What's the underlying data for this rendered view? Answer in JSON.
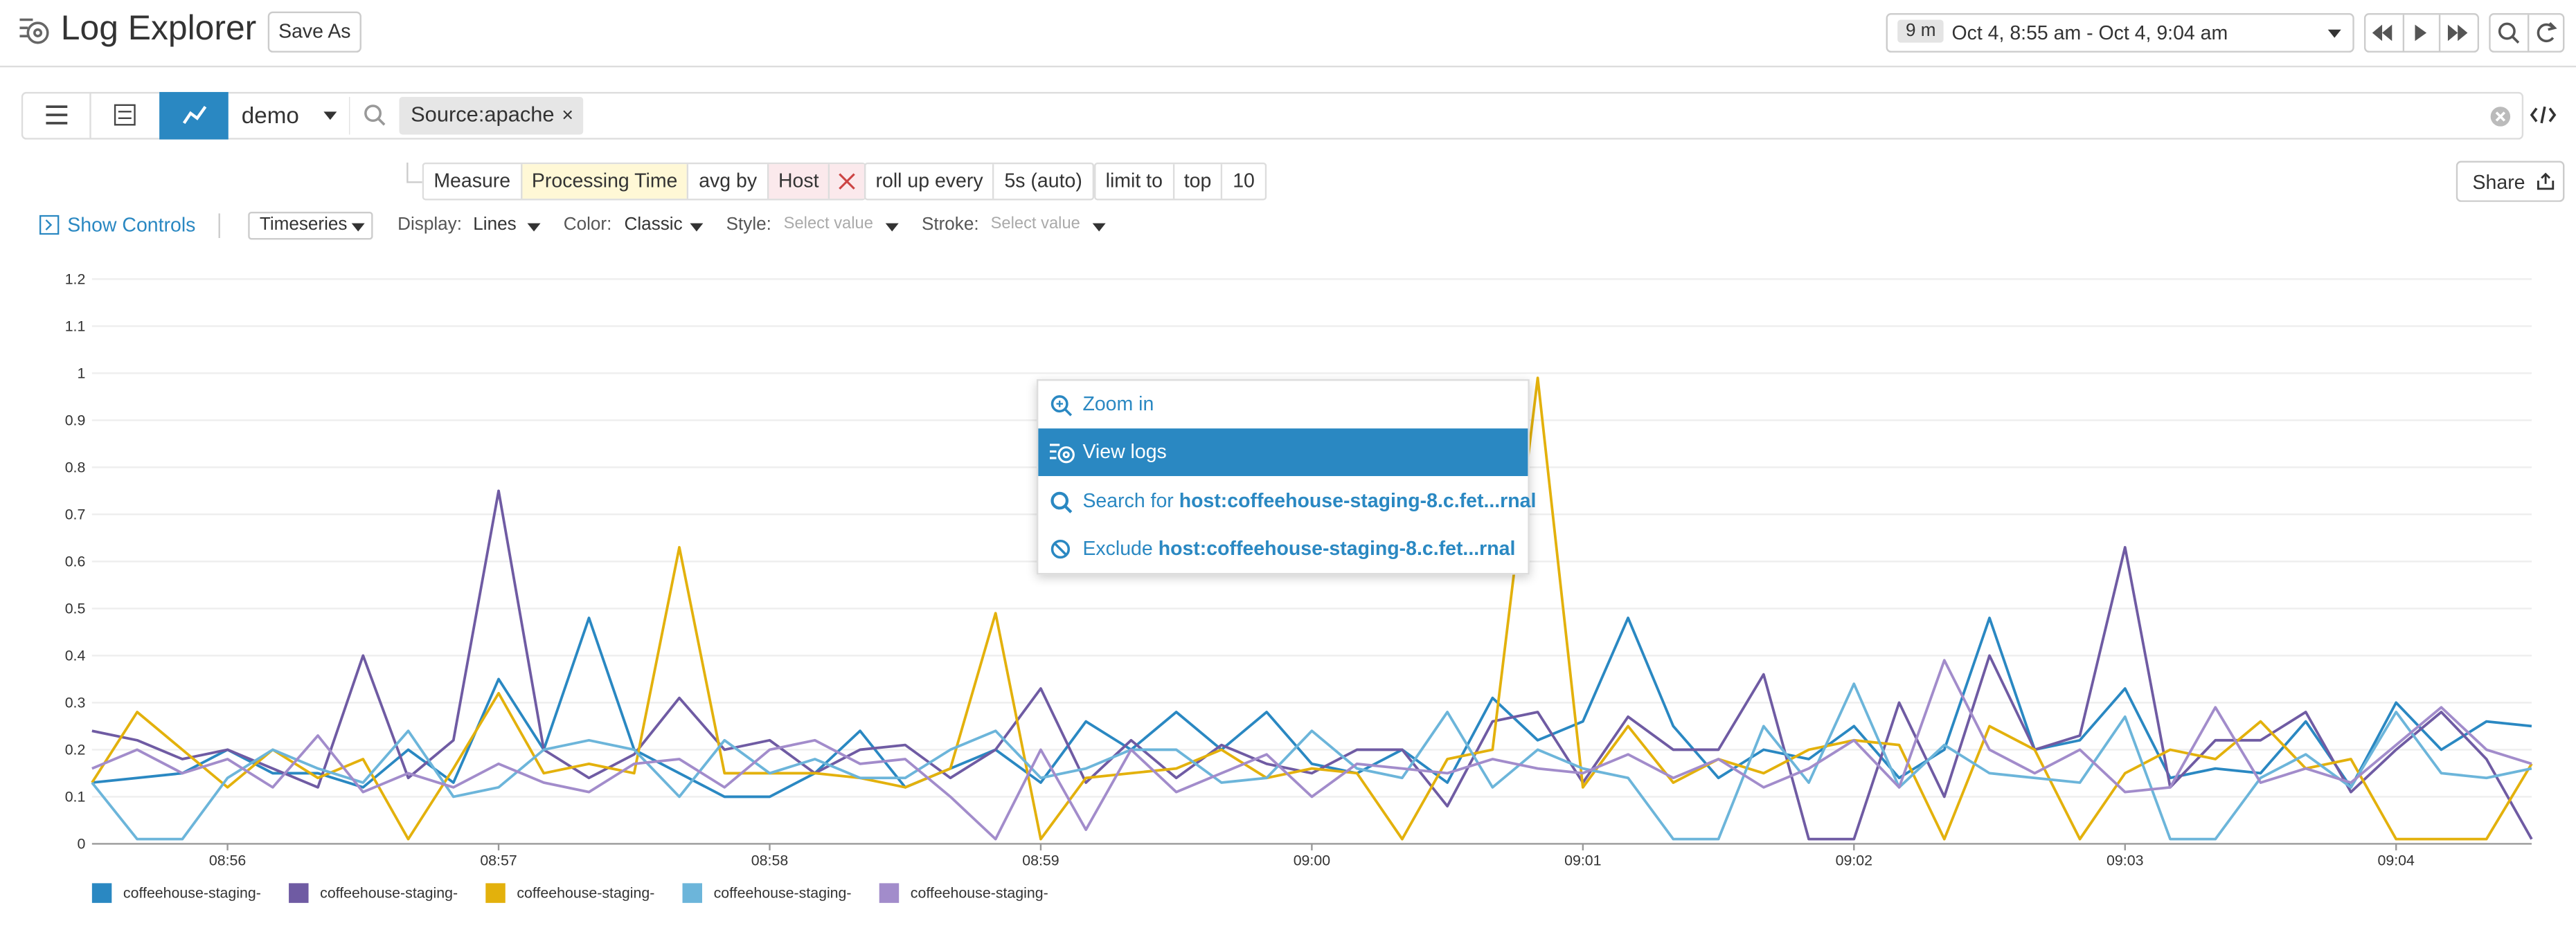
{
  "header": {
    "title": "Log Explorer",
    "save_as": "Save As",
    "time_range_badge": "9 m",
    "time_range": "Oct 4, 8:55 am - Oct 4, 9:04 am"
  },
  "search": {
    "index": "demo",
    "query_tag": "Source:apache",
    "tag_remove": "×"
  },
  "query_builder": {
    "measure_label": "Measure",
    "measure": "Processing Time",
    "agg": "avg by",
    "group": "Host",
    "rollup_label": "roll up every",
    "rollup": "5s (auto)",
    "limit_label": "limit to",
    "limit_dir": "top",
    "limit": "10",
    "share": "Share"
  },
  "controls": {
    "show_controls": "Show Controls",
    "viz": "Timeseries",
    "display_label": "Display:",
    "display": "Lines",
    "color_label": "Color:",
    "color": "Classic",
    "style_label": "Style:",
    "style": "Select value",
    "stroke_label": "Stroke:",
    "stroke": "Select value"
  },
  "context_menu": {
    "zoom_in": "Zoom in",
    "view_logs": "View logs",
    "search_prefix": "Search for",
    "search_value": "host:coffeehouse-staging-8.c.fet...rnal",
    "exclude_prefix": "Exclude",
    "exclude_value": "host:coffeehouse-staging-8.c.fet...rnal"
  },
  "chart_data": {
    "type": "line",
    "categories": [
      null,
      null,
      null,
      "08:56",
      null,
      null,
      null,
      null,
      null,
      "08:57",
      null,
      null,
      null,
      null,
      null,
      "08:58",
      null,
      null,
      null,
      null,
      null,
      "08:59",
      null,
      null,
      null,
      null,
      null,
      "09:00",
      null,
      null,
      null,
      null,
      null,
      "09:01",
      null,
      null,
      null,
      null,
      null,
      "09:02",
      null,
      null,
      null,
      null,
      null,
      "09:03",
      null,
      null,
      null,
      null,
      null,
      "09:04",
      null,
      null,
      null
    ],
    "ylim": [
      0,
      1.2
    ],
    "yticks": [
      0,
      0.1,
      0.2,
      0.3,
      0.4,
      0.5,
      0.6,
      0.7,
      0.8,
      0.9,
      1,
      1.1,
      1.2
    ],
    "grid": true,
    "series": [
      {
        "name": "coffeehouse-staging-",
        "color": "#2a88c2",
        "values": [
          0.13,
          0.14,
          0.15,
          0.2,
          0.15,
          0.15,
          0.12,
          0.2,
          0.13,
          0.35,
          0.2,
          0.48,
          0.2,
          0.15,
          0.1,
          0.1,
          0.15,
          0.24,
          0.12,
          0.16,
          0.2,
          0.13,
          0.26,
          0.2,
          0.28,
          0.2,
          0.28,
          0.17,
          0.15,
          0.2,
          0.13,
          0.31,
          0.22,
          0.26,
          0.48,
          0.25,
          0.14,
          0.2,
          0.18,
          0.25,
          0.14,
          0.2,
          0.48,
          0.2,
          0.22,
          0.33,
          0.14,
          0.16,
          0.15,
          0.26,
          0.12,
          0.3,
          0.2,
          0.26,
          0.25
        ]
      },
      {
        "name": "coffeehouse-staging-",
        "color": "#6f5ba3",
        "values": [
          0.24,
          0.22,
          0.18,
          0.2,
          0.16,
          0.12,
          0.4,
          0.14,
          0.22,
          0.75,
          0.2,
          0.14,
          0.19,
          0.31,
          0.2,
          0.22,
          0.15,
          0.2,
          0.21,
          0.14,
          0.2,
          0.33,
          0.13,
          0.22,
          0.14,
          0.21,
          0.17,
          0.15,
          0.2,
          0.2,
          0.08,
          0.26,
          0.28,
          0.13,
          0.27,
          0.2,
          0.2,
          0.36,
          0.01,
          0.01,
          0.3,
          0.1,
          0.4,
          0.2,
          0.23,
          0.63,
          0.12,
          0.22,
          0.22,
          0.28,
          0.11,
          0.2,
          0.28,
          0.18,
          0.01
        ]
      },
      {
        "name": "coffeehouse-staging-",
        "color": "#e3b10c",
        "values": [
          0.13,
          0.28,
          0.2,
          0.12,
          0.2,
          0.14,
          0.18,
          0.01,
          0.16,
          0.32,
          0.15,
          0.17,
          0.15,
          0.63,
          0.15,
          0.15,
          0.15,
          0.14,
          0.12,
          0.16,
          0.49,
          0.01,
          0.14,
          0.15,
          0.16,
          0.2,
          0.14,
          0.16,
          0.15,
          0.01,
          0.18,
          0.2,
          0.99,
          0.12,
          0.25,
          0.13,
          0.18,
          0.15,
          0.2,
          0.22,
          0.21,
          0.01,
          0.25,
          0.2,
          0.01,
          0.15,
          0.2,
          0.18,
          0.26,
          0.16,
          0.18,
          0.01,
          0.01,
          0.01,
          0.17
        ]
      },
      {
        "name": "coffeehouse-staging-",
        "color": "#6cb5da",
        "values": [
          0.13,
          0.01,
          0.01,
          0.14,
          0.2,
          0.16,
          0.13,
          0.24,
          0.1,
          0.12,
          0.2,
          0.22,
          0.2,
          0.1,
          0.22,
          0.15,
          0.18,
          0.14,
          0.14,
          0.2,
          0.24,
          0.14,
          0.16,
          0.2,
          0.2,
          0.13,
          0.14,
          0.24,
          0.16,
          0.14,
          0.28,
          0.12,
          0.2,
          0.16,
          0.14,
          0.01,
          0.01,
          0.25,
          0.13,
          0.34,
          0.12,
          0.21,
          0.15,
          0.14,
          0.13,
          0.27,
          0.01,
          0.01,
          0.14,
          0.19,
          0.12,
          0.28,
          0.15,
          0.14,
          0.16
        ]
      },
      {
        "name": "coffeehouse-staging-",
        "color": "#a28ccb",
        "values": [
          0.16,
          0.2,
          0.15,
          0.18,
          0.12,
          0.23,
          0.11,
          0.15,
          0.12,
          0.17,
          0.13,
          0.11,
          0.17,
          0.18,
          0.12,
          0.2,
          0.22,
          0.17,
          0.18,
          0.1,
          0.01,
          0.2,
          0.03,
          0.2,
          0.11,
          0.15,
          0.19,
          0.1,
          0.17,
          0.16,
          0.15,
          0.18,
          0.16,
          0.15,
          0.19,
          0.14,
          0.18,
          0.12,
          0.16,
          0.22,
          0.12,
          0.39,
          0.2,
          0.15,
          0.2,
          0.11,
          0.12,
          0.29,
          0.13,
          0.16,
          0.13,
          0.21,
          0.29,
          0.2,
          0.17
        ]
      }
    ]
  }
}
